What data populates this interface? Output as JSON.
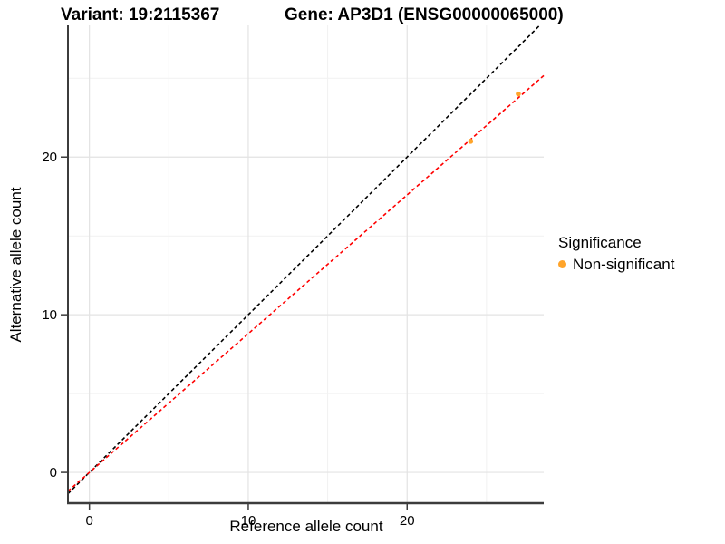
{
  "chart_data": {
    "type": "scatter",
    "title_left": "Variant: 19:2115367",
    "title_right": "Gene: AP3D1 (ENSG00000065000)",
    "xlabel": "Reference allele count",
    "ylabel": "Alternative allele count",
    "xlim": [
      -1.35,
      28.6
    ],
    "ylim": [
      -1.95,
      28.35
    ],
    "xticks": [
      0,
      10,
      20
    ],
    "yticks": [
      0,
      10,
      20
    ],
    "xticks_minor": [
      5,
      15,
      25
    ],
    "yticks_minor": [
      5,
      15,
      25
    ],
    "grid": "major+minor",
    "points": [
      {
        "x": 24,
        "y": 21,
        "series": "Non-significant"
      },
      {
        "x": 27,
        "y": 24,
        "series": "Non-significant"
      }
    ],
    "lines": [
      {
        "name": "identity-line",
        "slope": 1,
        "intercept": 0,
        "color": "#000000",
        "style": "dashed"
      },
      {
        "name": "expected-ratio-line",
        "slope": 0.88,
        "intercept": 0,
        "color": "#FF0000",
        "style": "dashed"
      }
    ],
    "legend": {
      "title": "Significance",
      "position": "right",
      "entries": [
        {
          "label": "Non-significant",
          "color": "#FFA42A",
          "marker": "circle"
        }
      ]
    },
    "colors": {
      "point": "#FFA42A",
      "grid_major": "#E3E3E3",
      "grid_minor": "#F1F1F1",
      "axis": "#3C3C3C",
      "tick_text": "#1A1A1A"
    }
  }
}
